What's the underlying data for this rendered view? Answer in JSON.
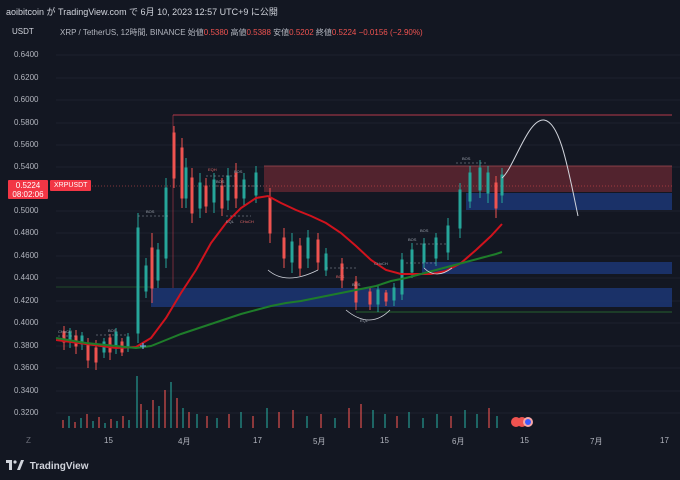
{
  "header": {
    "title": "aoibitcoin が TradingView.com で 6月 10, 2023 12:57 UTC+9 に公開"
  },
  "quote_currency": "USDT",
  "symbol_line": {
    "name": "XRP / TetherUS, 12時間, BINANCE",
    "open_label": "始値",
    "open": "0.5380",
    "high_label": "高値",
    "high": "0.5388",
    "low_label": "安値",
    "low": "0.5202",
    "close_label": "終値",
    "close": "0.5224",
    "change": "−0.0156 (−2.90%)"
  },
  "price_tag": {
    "price": "0.5224",
    "countdown": "08:02:06",
    "symbol": "XRPUSDT"
  },
  "y_ticks": [
    "0.6400",
    "0.6200",
    "0.6000",
    "0.5800",
    "0.5600",
    "0.5400",
    "0.5000",
    "0.4800",
    "0.4600",
    "0.4400",
    "0.4200",
    "0.4000",
    "0.3800",
    "0.3600",
    "0.3400",
    "0.3200"
  ],
  "x_ticks": [
    "15",
    "4月",
    "17",
    "5月",
    "15",
    "6月",
    "15",
    "7月",
    "17"
  ],
  "z_button": "Z",
  "footer": {
    "brand": "TradingView"
  },
  "chart_labels": {
    "choch_left": "CHoCH",
    "bos_left": "BOS",
    "bos_1": "BOS",
    "eqh": "EQH",
    "bos_2": "BOS",
    "bos_3": "BOS",
    "eql": "EQL",
    "choch_mid": "CHoCH",
    "bos_4": "BOS",
    "bos_5": "BOS",
    "eql_2": "EQL",
    "choch_right": "CHoCH",
    "bos_6": "BOS",
    "bos_7": "BOS",
    "bos_8": "BOS"
  },
  "colors": {
    "up": "#26a69a",
    "down": "#ef5350",
    "ma_red": "#d0131d",
    "ma_green": "#1e7d2a",
    "supply": "#6b2a33",
    "demand": "#1e3a7a",
    "bg": "#131722"
  },
  "chart_data": {
    "type": "candlestick",
    "y_range": [
      0.3,
      0.66
    ],
    "ma_red": [
      0.382,
      0.378,
      0.376,
      0.378,
      0.385,
      0.41,
      0.44,
      0.47,
      0.49,
      0.505,
      0.51,
      0.508,
      0.5,
      0.485,
      0.47,
      0.455,
      0.445,
      0.44,
      0.438,
      0.44,
      0.448,
      0.46,
      0.475,
      0.49
    ],
    "ma_green": [
      0.375,
      0.374,
      0.375,
      0.38,
      0.388,
      0.396,
      0.402,
      0.408,
      0.413,
      0.418,
      0.422,
      0.426,
      0.43,
      0.434,
      0.438,
      0.442,
      0.447,
      0.452,
      0.458,
      0.462
    ],
    "levels": {
      "top_line": 0.585,
      "supply_zone": [
        0.516,
        0.54
      ],
      "blue_zone_top": [
        0.501,
        0.516
      ],
      "blue_zone_mid": [
        0.444,
        0.454
      ],
      "blue_zone_low": [
        0.415,
        0.432
      ],
      "green_line": 0.41
    }
  }
}
